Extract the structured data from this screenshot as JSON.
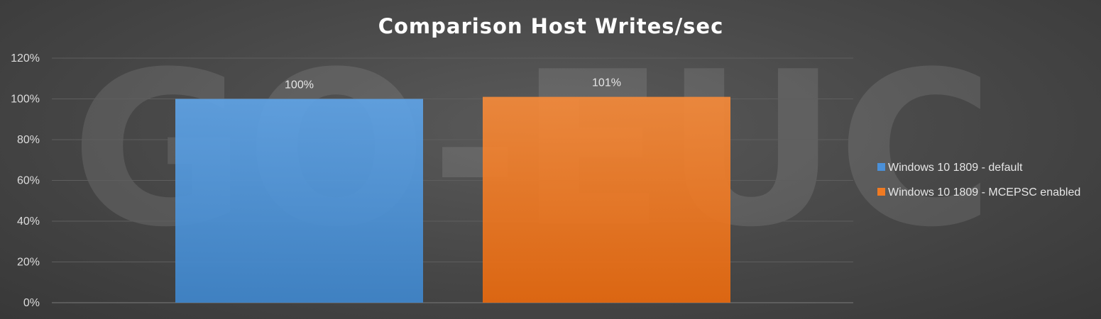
{
  "watermark": "GO-EUC",
  "chart_data": {
    "type": "bar",
    "title": "Comparison Host Writes/sec",
    "xlabel": "",
    "ylabel": "",
    "ylim": [
      0,
      120
    ],
    "y_ticks": [
      "0%",
      "20%",
      "40%",
      "60%",
      "80%",
      "100%",
      "120%"
    ],
    "y_tick_values": [
      0,
      20,
      40,
      60,
      80,
      100,
      120
    ],
    "categories": [
      ""
    ],
    "grid": true,
    "legend_position": "right",
    "series": [
      {
        "name": "Windows 10 1809 - default",
        "values": [
          100
        ],
        "label": "100%",
        "color": "#4a90d9"
      },
      {
        "name": "Windows 10 1809 - MCEPSC enabled",
        "values": [
          101
        ],
        "label": "101%",
        "color": "#f07a22"
      }
    ]
  }
}
